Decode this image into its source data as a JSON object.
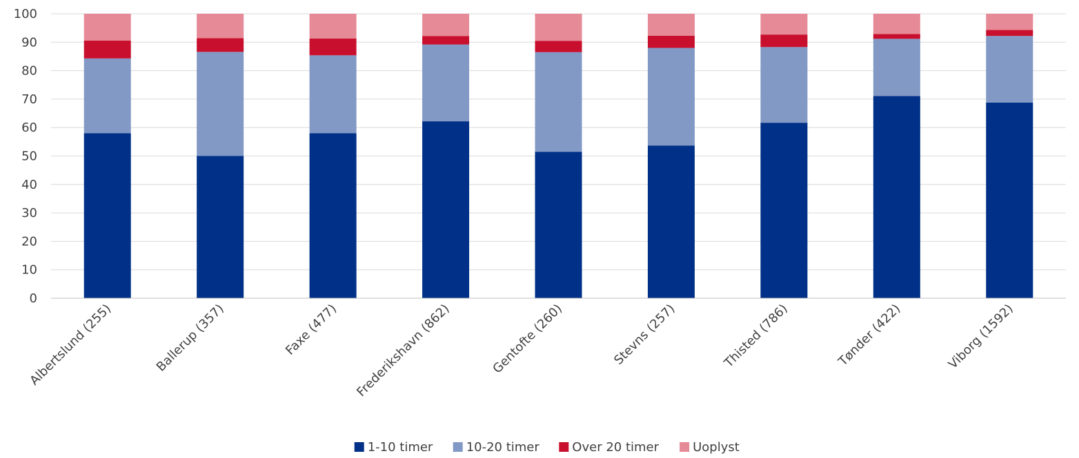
{
  "chart_data": {
    "type": "bar",
    "stacked": true,
    "categories": [
      "Albertslund (255)",
      "Ballerup (357)",
      "Faxe (477)",
      "Frederikshavn (862)",
      "Gentofte (260)",
      "Stevns (257)",
      "Thisted (786)",
      "Tønder (422)",
      "Viborg (1592)"
    ],
    "series": [
      {
        "name": "1-10 timer",
        "color": "#003087",
        "values": [
          58.0,
          50.0,
          58.0,
          62.2,
          51.5,
          53.7,
          61.7,
          71.1,
          68.8
        ]
      },
      {
        "name": "10-20 timer",
        "color": "#8299c5",
        "values": [
          26.3,
          36.6,
          27.4,
          27.0,
          35.0,
          34.3,
          26.6,
          20.1,
          23.4
        ]
      },
      {
        "name": "Over 20 timer",
        "color": "#c8102e",
        "values": [
          6.3,
          4.8,
          5.9,
          3.0,
          4.0,
          4.3,
          4.4,
          1.7,
          2.1
        ]
      },
      {
        "name": "Uoplyst",
        "color": "#e58a96",
        "values": [
          9.4,
          8.6,
          8.7,
          7.8,
          9.5,
          7.7,
          7.3,
          7.1,
          5.7
        ]
      }
    ],
    "title": "",
    "xlabel": "",
    "ylabel": "",
    "ylim": [
      0,
      100
    ],
    "yticks": [
      0,
      10,
      20,
      30,
      40,
      50,
      60,
      70,
      80,
      90,
      100
    ],
    "grid": true,
    "legend_position": "bottom"
  }
}
